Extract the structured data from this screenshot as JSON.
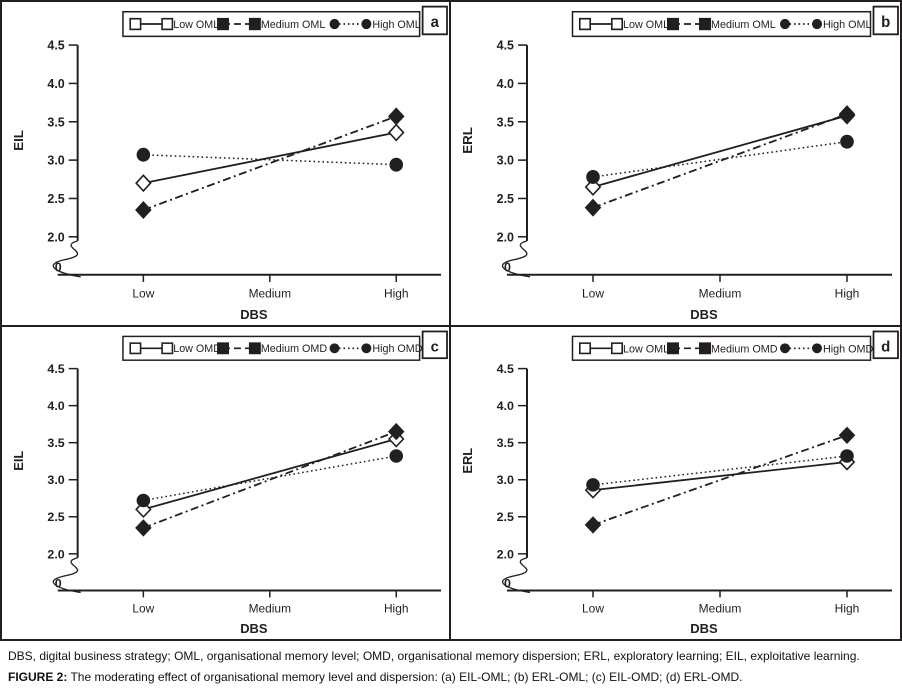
{
  "figure": {
    "abbreviations_note": "DBS, digital business strategy; OML, organisational memory level; OMD, organisational memory dispersion; ERL, exploratory learning; EIL, exploitative learning.",
    "caption_label": "FIGURE 2:",
    "caption_text": "The moderating effect of organisational memory level and dispersion: (a) EIL-OML; (b) ERL-OML; (c) EIL-OMD; (d) ERL-OMD."
  },
  "colors": {
    "ink": "#231f20",
    "background": "#ffffff"
  },
  "chart_data": [
    {
      "type": "line",
      "panel_label": "a",
      "xlabel": "DBS",
      "ylabel": "EIL",
      "x_categories": [
        "Low",
        "Medium",
        "High"
      ],
      "y_ticks": [
        "4.5",
        "4.0",
        "3.5",
        "3.0",
        "2.5",
        "2.0"
      ],
      "y_break_label": "0",
      "ylim": [
        2.0,
        4.5
      ],
      "axis_break": true,
      "grid": false,
      "legend_position": "top-center",
      "series": [
        {
          "name": "Low OML",
          "line_style": "solid",
          "marker": "open-diamond",
          "legend_marker": "open-square",
          "x": [
            "Low",
            "High"
          ],
          "y": [
            2.7,
            3.36
          ]
        },
        {
          "name": "Medium OML",
          "line_style": "dash-dot",
          "marker": "filled-diamond",
          "legend_marker": "filled-square",
          "x": [
            "Low",
            "High"
          ],
          "y": [
            2.35,
            3.57
          ]
        },
        {
          "name": "High OML",
          "line_style": "dotted",
          "marker": "filled-circle",
          "legend_marker": "filled-circle",
          "x": [
            "Low",
            "High"
          ],
          "y": [
            3.07,
            2.94
          ]
        }
      ]
    },
    {
      "type": "line",
      "panel_label": "b",
      "xlabel": "DBS",
      "ylabel": "ERL",
      "x_categories": [
        "Low",
        "Medium",
        "High"
      ],
      "y_ticks": [
        "4.5",
        "4.0",
        "3.5",
        "3.0",
        "2.5",
        "2.0"
      ],
      "y_break_label": "0",
      "ylim": [
        2.0,
        4.5
      ],
      "axis_break": true,
      "grid": false,
      "legend_position": "top-center",
      "series": [
        {
          "name": "Low OML",
          "line_style": "solid",
          "marker": "open-diamond",
          "legend_marker": "open-square",
          "x": [
            "Low",
            "High"
          ],
          "y": [
            2.65,
            3.58
          ]
        },
        {
          "name": "Medium OML",
          "line_style": "dash-dot",
          "marker": "filled-diamond",
          "legend_marker": "filled-square",
          "x": [
            "Low",
            "High"
          ],
          "y": [
            2.38,
            3.6
          ]
        },
        {
          "name": "High OML",
          "line_style": "dotted",
          "marker": "filled-circle",
          "legend_marker": "filled-circle",
          "x": [
            "Low",
            "High"
          ],
          "y": [
            2.78,
            3.24
          ]
        }
      ]
    },
    {
      "type": "line",
      "panel_label": "c",
      "xlabel": "DBS",
      "ylabel": "EIL",
      "x_categories": [
        "Low",
        "Medium",
        "High"
      ],
      "y_ticks": [
        "4.5",
        "4.0",
        "3.5",
        "3.0",
        "2.5",
        "2.0"
      ],
      "y_break_label": "0",
      "ylim": [
        2.0,
        4.5
      ],
      "axis_break": true,
      "grid": false,
      "legend_position": "top-center",
      "series": [
        {
          "name": "Low OMD",
          "line_style": "solid",
          "marker": "open-diamond",
          "legend_marker": "open-square",
          "x": [
            "Low",
            "High"
          ],
          "y": [
            2.6,
            3.55
          ]
        },
        {
          "name": "Medium OMD",
          "line_style": "dash-dot",
          "marker": "filled-diamond",
          "legend_marker": "filled-square",
          "x": [
            "Low",
            "High"
          ],
          "y": [
            2.35,
            3.65
          ]
        },
        {
          "name": "High OMD",
          "line_style": "dotted",
          "marker": "filled-circle",
          "legend_marker": "filled-circle",
          "x": [
            "Low",
            "High"
          ],
          "y": [
            2.72,
            3.32
          ]
        }
      ]
    },
    {
      "type": "line",
      "panel_label": "d",
      "xlabel": "DBS",
      "ylabel": "ERL",
      "x_categories": [
        "Low",
        "Medium",
        "High"
      ],
      "y_ticks": [
        "4.5",
        "4.0",
        "3.5",
        "3.0",
        "2.5",
        "2.0"
      ],
      "y_break_label": "0",
      "ylim": [
        2.0,
        4.5
      ],
      "axis_break": true,
      "grid": false,
      "legend_position": "top-center",
      "series": [
        {
          "name": "Low OML",
          "line_style": "solid",
          "marker": "open-diamond",
          "legend_marker": "open-square",
          "x": [
            "Low",
            "High"
          ],
          "y": [
            2.86,
            3.24
          ]
        },
        {
          "name": "Medium OMD",
          "line_style": "dash-dot",
          "marker": "filled-diamond",
          "legend_marker": "filled-square",
          "x": [
            "Low",
            "High"
          ],
          "y": [
            2.39,
            3.6
          ]
        },
        {
          "name": "High OMD",
          "line_style": "dotted",
          "marker": "filled-circle",
          "legend_marker": "filled-circle",
          "x": [
            "Low",
            "High"
          ],
          "y": [
            2.93,
            3.32
          ]
        }
      ]
    }
  ]
}
